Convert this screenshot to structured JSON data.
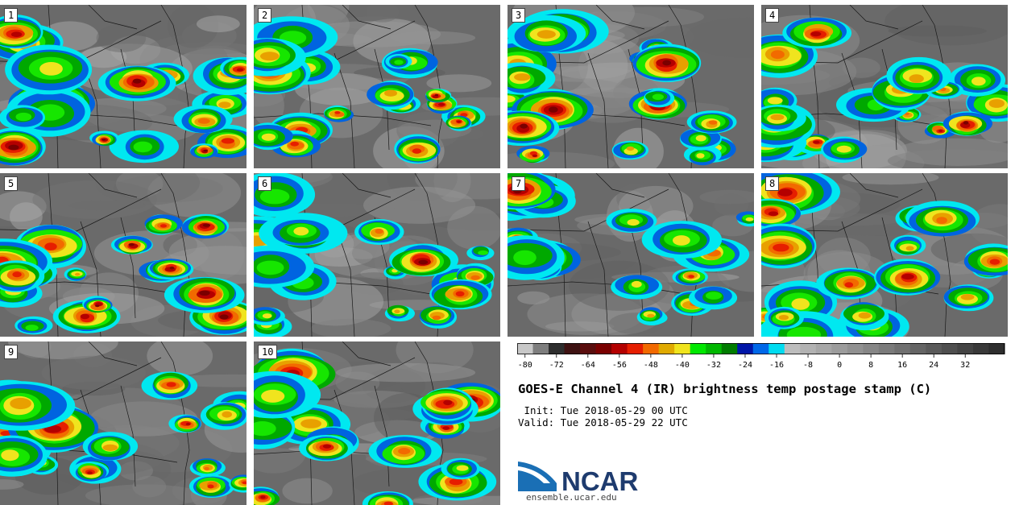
{
  "panels": [
    {
      "label": "1"
    },
    {
      "label": "2"
    },
    {
      "label": "3"
    },
    {
      "label": "4"
    },
    {
      "label": "5"
    },
    {
      "label": "6"
    },
    {
      "label": "7"
    },
    {
      "label": "8"
    },
    {
      "label": "9"
    },
    {
      "label": "10"
    }
  ],
  "colorbar": {
    "colors": [
      "#c8c8c8",
      "#7e7e7e",
      "#2e2e2e",
      "#3e1212",
      "#5a0d0d",
      "#7a0000",
      "#b40000",
      "#e61e00",
      "#f26a00",
      "#e0aa00",
      "#f0e41e",
      "#00e800",
      "#00b800",
      "#007c00",
      "#0016a8",
      "#0068e8",
      "#00dcf0",
      "#bdbdbd",
      "#b2b2b2",
      "#a7a7a7",
      "#9c9c9c",
      "#919191",
      "#868686",
      "#7b7b7b",
      "#707070",
      "#656565",
      "#5a5a5a",
      "#4f4f4f",
      "#444444",
      "#393939",
      "#2e2e2e"
    ],
    "ticks": [
      "-80",
      "-72",
      "-64",
      "-56",
      "-48",
      "-40",
      "-32",
      "-24",
      "-16",
      "-8",
      "0",
      "8",
      "16",
      "24",
      "32"
    ]
  },
  "title": "GOES-E Channel 4 (IR) brightness temp postage stamp (C)",
  "init": " Init: Tue 2018-05-29 00 UTC",
  "valid": "Valid: Tue 2018-05-29 22 UTC",
  "logo_text": "NCAR",
  "url": "ensemble.ucar.edu"
}
